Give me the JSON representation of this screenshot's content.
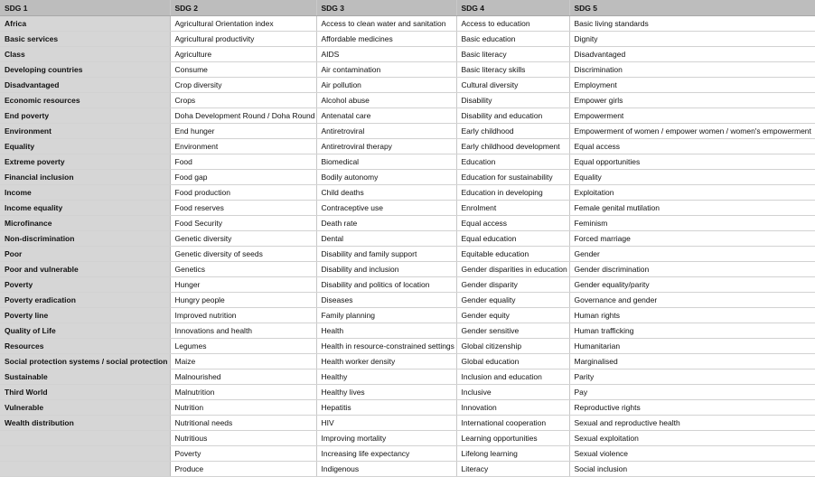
{
  "table": {
    "headers": [
      "SDG 1",
      "SDG 2",
      "SDG 3",
      "SDG 4",
      "SDG 5"
    ],
    "rows": [
      [
        "Africa",
        "Agricultural Orientation index",
        "Access to clean water and sanitation",
        "Access to education",
        "Basic living standards"
      ],
      [
        "Basic services",
        "Agricultural productivity",
        "Affordable medicines",
        "Basic education",
        "Dignity"
      ],
      [
        "Class",
        "Agriculture",
        "AIDS",
        "Basic literacy",
        "Disadvantaged"
      ],
      [
        "Developing countries",
        "Consume",
        "Air contamination",
        "Basic literacy skills",
        "Discrimination"
      ],
      [
        "Disadvantaged",
        "Crop diversity",
        "Air pollution",
        "Cultural diversity",
        "Employment"
      ],
      [
        "Economic resources",
        "Crops",
        "Alcohol abuse",
        "Disability",
        "Empower girls"
      ],
      [
        "End poverty",
        "Doha Development Round / Doha Round",
        "Antenatal care",
        "Disability and education",
        "Empowerment"
      ],
      [
        "Environment",
        "End hunger",
        "Antiretroviral",
        "Early childhood",
        "Empowerment of women / empower women / women's empowerment"
      ],
      [
        "Equality",
        "Environment",
        "Antiretroviral therapy",
        "Early childhood development",
        "Equal access"
      ],
      [
        "Extreme poverty",
        "Food",
        "Biomedical",
        "Education",
        "Equal opportunities"
      ],
      [
        "Financial inclusion",
        "Food gap",
        "Bodily autonomy",
        "Education for sustainability",
        "Equality"
      ],
      [
        "Income",
        "Food production",
        "Child deaths",
        "Education in developing",
        "Exploitation"
      ],
      [
        "Income equality",
        "Food reserves",
        "Contraceptive use",
        "Enrolment",
        "Female genital mutilation"
      ],
      [
        "Microfinance",
        "Food Security",
        "Death rate",
        "Equal access",
        "Feminism"
      ],
      [
        "Non-discrimination",
        "Genetic diversity",
        "Dental",
        "Equal education",
        "Forced marriage"
      ],
      [
        "Poor",
        "Genetic diversity of seeds",
        "Disability and family support",
        "Equitable education",
        "Gender"
      ],
      [
        "Poor and vulnerable",
        "Genetics",
        "Disability and inclusion",
        "Gender disparities in education",
        "Gender discrimination"
      ],
      [
        "Poverty",
        "Hunger",
        "Disability and politics of location",
        "Gender disparity",
        "Gender equality/parity"
      ],
      [
        "Poverty eradication",
        "Hungry people",
        "Diseases",
        "Gender equality",
        "Governance and gender"
      ],
      [
        "Poverty line",
        "Improved nutrition",
        "Family planning",
        "Gender equity",
        "Human rights"
      ],
      [
        "Quality of Life",
        "Innovations and health",
        "Health",
        "Gender sensitive",
        "Human trafficking"
      ],
      [
        "Resources",
        "Legumes",
        "Health in resource-constrained settings",
        "Global citizenship",
        "Humanitarian"
      ],
      [
        "Social protection systems / social protection",
        "Maize",
        "Health worker density",
        "Global education",
        "Marginalised"
      ],
      [
        "Sustainable",
        "Malnourished",
        "Healthy",
        "Inclusion and education",
        "Parity"
      ],
      [
        "Third World",
        "Malnutrition",
        "Healthy lives",
        "Inclusive",
        "Pay"
      ],
      [
        "Vulnerable",
        "Nutrition",
        "Hepatitis",
        "Innovation",
        "Reproductive rights"
      ],
      [
        "Wealth distribution",
        "Nutritional needs",
        "HIV",
        "International cooperation",
        "Sexual and reproductive health"
      ],
      [
        "",
        "Nutritious",
        "Improving mortality",
        "Learning opportunities",
        "Sexual exploitation"
      ],
      [
        "",
        "Poverty",
        "Increasing life expectancy",
        "Lifelong learning",
        "Sexual violence"
      ],
      [
        "",
        "Produce",
        "Indigenous",
        "Literacy",
        "Social inclusion"
      ]
    ]
  }
}
